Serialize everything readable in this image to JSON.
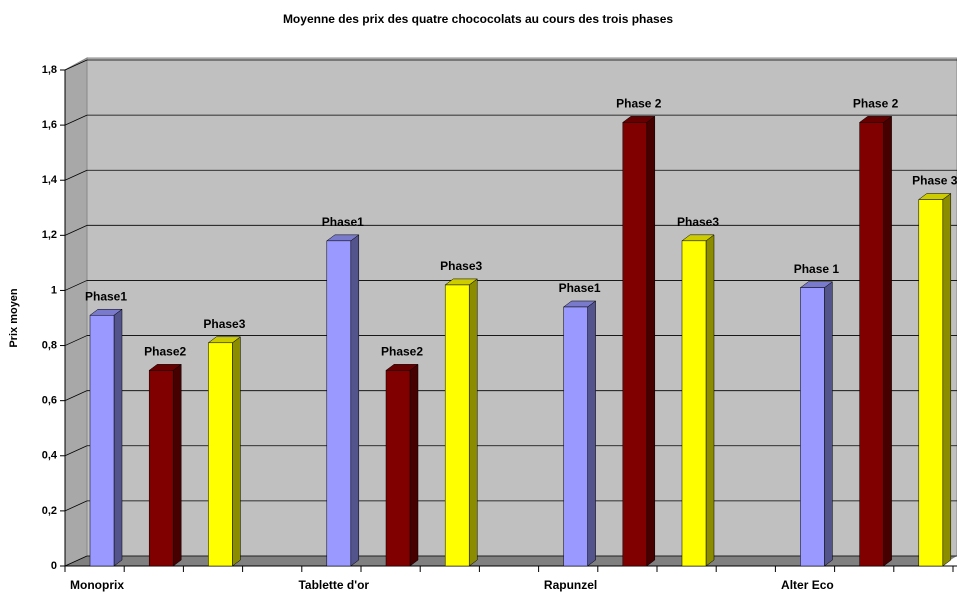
{
  "chart_data": {
    "type": "bar3d",
    "title": "Moyenne des prix des quatre chococolats au cours des trois phases",
    "ylabel": "Prix moyen",
    "categories": [
      "Monoprix",
      "Tablette d'or",
      "Rapunzel",
      "Alter Eco"
    ],
    "series": [
      {
        "color": "#9999ff",
        "values": [
          0.91,
          1.18,
          0.94,
          1.01
        ],
        "labels": [
          "Phase1",
          "Phase1",
          "Phase1",
          "Phase 1"
        ]
      },
      {
        "color": "#800000",
        "values": [
          0.71,
          0.71,
          1.61,
          1.61
        ],
        "labels": [
          "Phase2",
          "Phase2",
          "Phase 2",
          "Phase 2"
        ]
      },
      {
        "color": "#ffff00",
        "values": [
          0.81,
          1.02,
          1.18,
          1.33
        ],
        "labels": [
          "Phase3",
          "Phase3",
          "Phase3",
          "Phase 3"
        ]
      }
    ],
    "ylim": [
      0,
      1.8
    ],
    "yticks": [
      0,
      {
        "value": 0.2,
        "label": "0,2"
      },
      {
        "value": 0.4,
        "label": "0,4"
      },
      {
        "value": 0.6,
        "label": "0,6"
      },
      {
        "value": 0.8,
        "label": "0,8"
      },
      1,
      {
        "value": 1.2,
        "label": "1,2"
      },
      {
        "value": 1.4,
        "label": "1,4"
      },
      {
        "value": 1.6,
        "label": "1,6"
      },
      {
        "value": 1.8,
        "label": "1,8"
      }
    ],
    "grid": true
  }
}
